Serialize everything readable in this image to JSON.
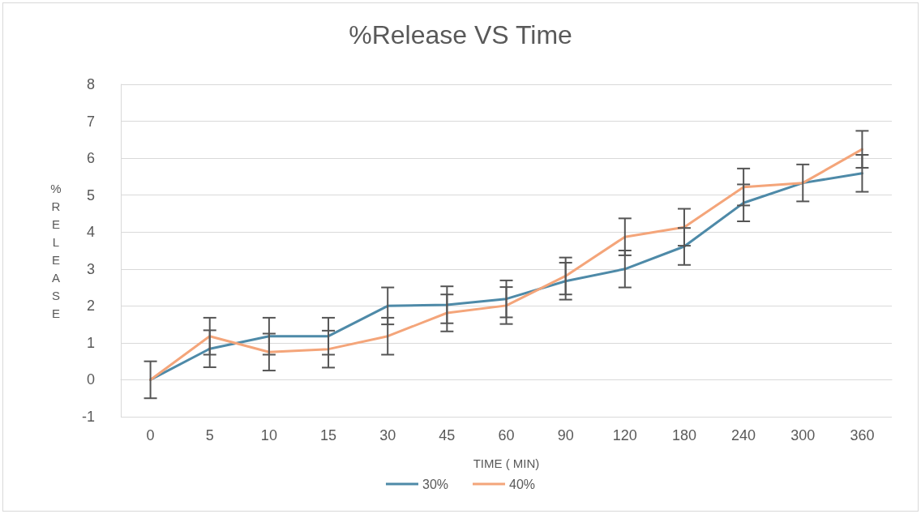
{
  "chart_data": {
    "type": "line",
    "title": "%Release VS Time",
    "xlabel": "TIME ( MIN)",
    "ylabel": "%RELEASE",
    "categories": [
      "0",
      "5",
      "10",
      "15",
      "30",
      "45",
      "60",
      "90",
      "120",
      "180",
      "240",
      "300",
      "360"
    ],
    "series": [
      {
        "name": "30%",
        "color": "#4e8aa8",
        "values": [
          0,
          0.84,
          1.18,
          1.18,
          2.0,
          2.03,
          2.19,
          2.67,
          3.0,
          3.61,
          4.79,
          5.33,
          5.59
        ],
        "errors": [
          0.5,
          0.5,
          0.5,
          0.5,
          0.5,
          0.5,
          0.5,
          0.5,
          0.5,
          0.5,
          0.5,
          0.5,
          0.5
        ]
      },
      {
        "name": "40%",
        "color": "#f4a57a",
        "values": [
          0,
          1.18,
          0.75,
          0.83,
          1.18,
          1.81,
          2.01,
          2.81,
          3.87,
          4.13,
          5.22,
          5.33,
          6.24
        ],
        "errors": [
          0.5,
          0.5,
          0.5,
          0.5,
          0.5,
          0.5,
          0.5,
          0.5,
          0.5,
          0.5,
          0.5,
          0.5,
          0.5
        ]
      }
    ],
    "ylim": [
      -1,
      8
    ],
    "yticks": [
      -1,
      0,
      1,
      2,
      3,
      4,
      5,
      6,
      7,
      8
    ],
    "grid": "y",
    "legend": "bottom",
    "marker": "none",
    "line_style": "solid"
  }
}
